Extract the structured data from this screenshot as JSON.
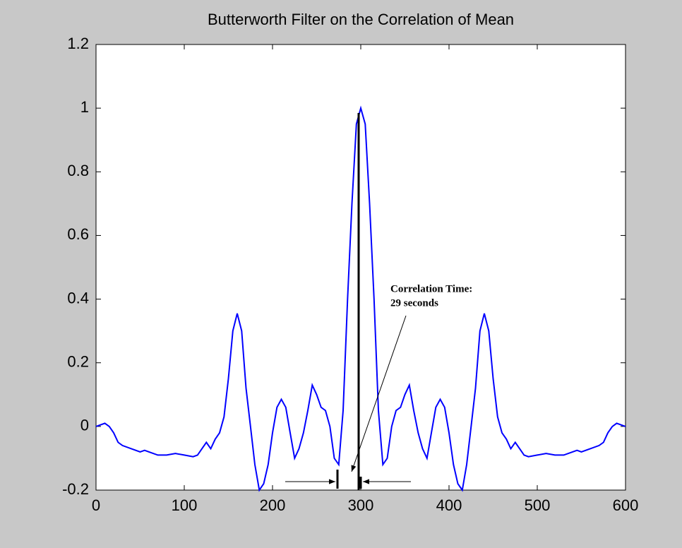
{
  "chart_data": {
    "type": "line",
    "title": "Butterworth Filter on the Correlation of Mean",
    "annotations": [
      "Correlation Time:",
      "29 seconds"
    ],
    "x": [
      0,
      10,
      15,
      20,
      25,
      30,
      40,
      50,
      55,
      60,
      70,
      80,
      90,
      100,
      110,
      115,
      125,
      130,
      135,
      140,
      145,
      150,
      155,
      160,
      165,
      170,
      175,
      180,
      185,
      190,
      195,
      200,
      205,
      210,
      215,
      220,
      225,
      230,
      235,
      240,
      245,
      250,
      255,
      260,
      265,
      270,
      275,
      280,
      285,
      290,
      295,
      300,
      305,
      310,
      315,
      320,
      325,
      330,
      335,
      340,
      345,
      350,
      355,
      360,
      365,
      370,
      375,
      380,
      385,
      390,
      395,
      400,
      405,
      410,
      415,
      420,
      425,
      430,
      435,
      440,
      445,
      450,
      455,
      460,
      465,
      470,
      475,
      485,
      490,
      500,
      510,
      520,
      530,
      540,
      545,
      550,
      560,
      570,
      575,
      580,
      585,
      590,
      600
    ],
    "series": [
      {
        "color": "#0000ff",
        "values": [
          0,
          0.01,
          0,
          -0.02,
          -0.05,
          -0.06,
          -0.07,
          -0.08,
          -0.075,
          -0.08,
          -0.09,
          -0.09,
          -0.085,
          -0.09,
          -0.095,
          -0.09,
          -0.05,
          -0.07,
          -0.04,
          -0.02,
          0.03,
          0.15,
          0.3,
          0.355,
          0.3,
          0.12,
          0,
          -0.12,
          -0.2,
          -0.18,
          -0.12,
          -0.02,
          0.06,
          0.085,
          0.06,
          -0.02,
          -0.1,
          -0.07,
          -0.02,
          0.05,
          0.13,
          0.1,
          0.06,
          0.05,
          0,
          -0.1,
          -0.12,
          0.05,
          0.4,
          0.7,
          0.95,
          1.0,
          0.95,
          0.7,
          0.4,
          0.05,
          -0.12,
          -0.1,
          0,
          0.05,
          0.06,
          0.1,
          0.13,
          0.05,
          -0.02,
          -0.07,
          -0.1,
          -0.02,
          0.06,
          0.085,
          0.06,
          -0.02,
          -0.12,
          -0.18,
          -0.2,
          -0.12,
          0,
          0.12,
          0.3,
          0.355,
          0.3,
          0.15,
          0.03,
          -0.02,
          -0.04,
          -0.07,
          -0.05,
          -0.09,
          -0.095,
          -0.09,
          -0.085,
          -0.09,
          -0.09,
          -0.08,
          -0.075,
          -0.08,
          -0.07,
          -0.06,
          -0.05,
          -0.02,
          0,
          0.01,
          0
        ]
      }
    ],
    "xlim": [
      0,
      600
    ],
    "xticks": [
      0,
      100,
      200,
      300,
      400,
      500,
      600
    ],
    "ylim": [
      -0.2,
      1.2
    ],
    "yticks": [
      -0.2,
      0,
      0.2,
      0.4,
      0.6,
      0.8,
      1,
      1.2
    ]
  }
}
